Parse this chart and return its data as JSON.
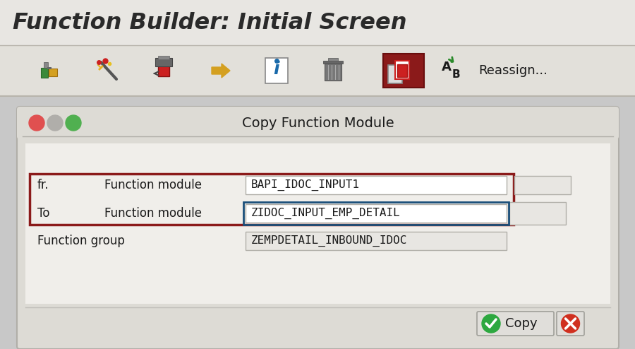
{
  "title": "Function Builder: Initial Screen",
  "dialog_title": "Copy Function Module",
  "bg_color": "#c8c8c8",
  "title_bg": "#e8e6e0",
  "toolbar_bg": "#e8e6e0",
  "dialog_bg": "#dddbd5",
  "dialog_inner_bg": "#ffffff",
  "row1_label": "fr.",
  "row1_field": "Function module",
  "row1_value": "BAPI_IDOC_INPUT1",
  "row2_label": "To",
  "row2_field": "Function module",
  "row2_value": "ZIDOC_INPUT_EMP_DETAIL",
  "row3_label": "Function group",
  "row3_value": "ZEMPDETAIL_INBOUND_IDOC",
  "red_border_color": "#8b1a1a",
  "blue_border_color": "#1a4f7a",
  "copy_btn_text": "Copy",
  "reassign_text": "Reassign...",
  "title_fontsize": 24,
  "toolbar_icon_size": 32
}
